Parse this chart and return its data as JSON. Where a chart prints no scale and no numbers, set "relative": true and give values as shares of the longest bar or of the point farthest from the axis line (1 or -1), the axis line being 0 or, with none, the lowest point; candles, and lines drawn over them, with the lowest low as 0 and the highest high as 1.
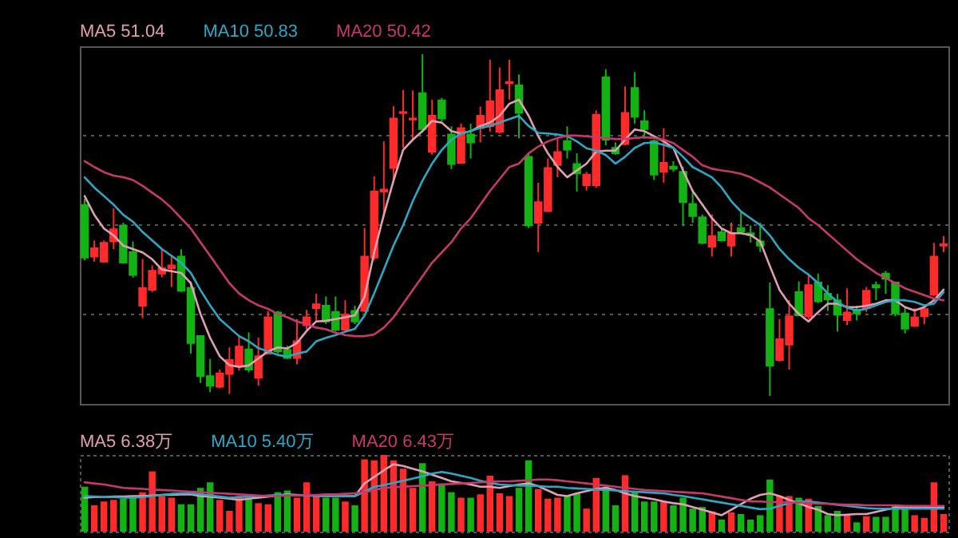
{
  "chart_data": [
    {
      "type": "candlestick",
      "relative": true,
      "grid": "y",
      "legend": "top left",
      "categories": [
        null,
        null,
        null,
        null,
        null,
        null,
        null,
        null,
        null,
        null,
        null,
        null,
        null,
        null,
        null,
        null,
        null,
        null,
        null,
        null,
        null,
        null,
        null,
        null,
        null,
        null,
        null,
        null,
        null,
        null,
        null,
        null,
        null,
        null,
        null,
        null,
        null,
        null,
        null,
        null,
        null,
        null,
        null,
        null,
        null,
        null,
        null,
        null,
        null,
        null,
        null,
        null,
        null,
        null,
        null,
        null,
        null,
        null,
        null,
        null,
        null,
        null,
        null,
        null,
        null,
        null,
        null,
        null,
        null,
        null,
        null,
        null,
        null,
        null,
        null,
        null,
        null,
        null,
        null,
        null,
        null,
        null,
        null,
        null,
        null,
        null,
        null,
        null,
        null,
        null
      ],
      "ohlc": [
        [
          0.559,
          0.577,
          0.397,
          0.405
        ],
        [
          0.408,
          0.455,
          0.393,
          0.432
        ],
        [
          0.393,
          0.455,
          0.39,
          0.448
        ],
        [
          0.452,
          0.549,
          0.429,
          0.488
        ],
        [
          0.499,
          0.507,
          0.387,
          0.39
        ],
        [
          0.421,
          0.452,
          0.346,
          0.354
        ],
        [
          0.264,
          0.401,
          0.228,
          0.316
        ],
        [
          0.311,
          0.382,
          0.304,
          0.366
        ],
        [
          0.358,
          0.432,
          0.347,
          0.374
        ],
        [
          0.374,
          0.413,
          0.319,
          0.382
        ],
        [
          0.408,
          0.429,
          0.304,
          0.308
        ],
        [
          0.316,
          0.335,
          0.124,
          0.155
        ],
        [
          0.175,
          0.178,
          0.038,
          0.058
        ],
        [
          0.058,
          0.108,
          0.011,
          0.03
        ],
        [
          0.027,
          0.077,
          0.022,
          0.066
        ],
        [
          0.064,
          0.142,
          0.006,
          0.105
        ],
        [
          0.089,
          0.174,
          0.074,
          0.144
        ],
        [
          0.136,
          0.186,
          0.069,
          0.077
        ],
        [
          0.053,
          0.171,
          0.03,
          0.116
        ],
        [
          0.124,
          0.249,
          0.124,
          0.23
        ],
        [
          0.244,
          0.249,
          0.124,
          0.131
        ],
        [
          0.135,
          0.147,
          0.108,
          0.111
        ],
        [
          0.111,
          0.225,
          0.092,
          0.16
        ],
        [
          0.207,
          0.252,
          0.194,
          0.23
        ],
        [
          0.257,
          0.299,
          0.218,
          0.268
        ],
        [
          0.264,
          0.291,
          0.21,
          0.218
        ],
        [
          0.246,
          0.291,
          0.189,
          0.194
        ],
        [
          0.194,
          0.28,
          0.189,
          0.238
        ],
        [
          0.249,
          0.264,
          0.21,
          0.218
        ],
        [
          0.249,
          0.491,
          0.246,
          0.408
        ],
        [
          0.405,
          0.643,
          0.397,
          0.598
        ],
        [
          0.598,
          0.745,
          0.526,
          0.604
        ],
        [
          0.667,
          0.848,
          0.624,
          0.812
        ],
        [
          0.828,
          0.895,
          0.726,
          0.831
        ],
        [
          0.809,
          0.894,
          0.75,
          0.812
        ],
        [
          0.886,
          1,
          0.778,
          0.781
        ],
        [
          0.715,
          0.867,
          0.706,
          0.82
        ],
        [
          0.865,
          0.872,
          0.804,
          0.812
        ],
        [
          0.765,
          0.789,
          0.664,
          0.679
        ],
        [
          0.682,
          0.797,
          0.679,
          0.784
        ],
        [
          0.765,
          0.797,
          0.695,
          0.742
        ],
        [
          0.784,
          0.847,
          0.742,
          0.82
        ],
        [
          0.789,
          0.984,
          0.773,
          0.862
        ],
        [
          0.773,
          0.961,
          0.768,
          0.895
        ],
        [
          0.915,
          0.984,
          0.867,
          0.919
        ],
        [
          0.909,
          0.941,
          0.754,
          0.828
        ],
        [
          0.7,
          0.71,
          0.491,
          0.499
        ],
        [
          0.507,
          0.624,
          0.421,
          0.567
        ],
        [
          0.541,
          0.695,
          0.538,
          0.667
        ],
        [
          0.676,
          0.757,
          0.64,
          0.714
        ],
        [
          0.746,
          0.789,
          0.695,
          0.721
        ],
        [
          0.679,
          0.71,
          0.598,
          0.651
        ],
        [
          0.617,
          0.656,
          0.601,
          0.648
        ],
        [
          0.617,
          0.836,
          0.609,
          0.823
        ],
        [
          0.933,
          0.956,
          0.734,
          0.75
        ],
        [
          0.726,
          0.742,
          0.706,
          0.71
        ],
        [
          0.737,
          0.906,
          0.734,
          0.828
        ],
        [
          0.901,
          0.948,
          0.797,
          0.817
        ],
        [
          0.804,
          0.836,
          0.754,
          0.781
        ],
        [
          0.746,
          0.75,
          0.632,
          0.648
        ],
        [
          0.656,
          0.784,
          0.624,
          0.682
        ],
        [
          0.671,
          0.687,
          0.656,
          0.665
        ],
        [
          0.656,
          0.671,
          0.499,
          0.567
        ],
        [
          0.562,
          0.604,
          0.507,
          0.526
        ],
        [
          0.523,
          0.531,
          0.444,
          0.448
        ],
        [
          0.437,
          0.531,
          0.408,
          0.468
        ],
        [
          0.479,
          0.491,
          0.452,
          0.455
        ],
        [
          0.44,
          0.507,
          0.408,
          0.476
        ],
        [
          0.491,
          0.538,
          0.476,
          0.48
        ],
        [
          0.476,
          0.499,
          0.449,
          0.471
        ],
        [
          0.452,
          0.507,
          0.421,
          0.44
        ],
        [
          0.254,
          0.332,
          0,
          0.089
        ],
        [
          0.105,
          0.225,
          0.1,
          0.166
        ],
        [
          0.15,
          0.28,
          0.077,
          0.233
        ],
        [
          0.304,
          0.335,
          0.233,
          0.236
        ],
        [
          0.233,
          0.358,
          0.225,
          0.324
        ],
        [
          0.332,
          0.358,
          0.272,
          0.277
        ],
        [
          0.299,
          0.324,
          0.249,
          0.283
        ],
        [
          0.28,
          0.299,
          0.189,
          0.238
        ],
        [
          0.222,
          0.315,
          0.207,
          0.244
        ],
        [
          0.252,
          0.264,
          0.221,
          0.241
        ],
        [
          0.257,
          0.319,
          0.246,
          0.308
        ],
        [
          0.324,
          0.335,
          0.28,
          0.318
        ],
        [
          0.358,
          0.366,
          0.299,
          0.343
        ],
        [
          0.332,
          0.335,
          0.233,
          0.241
        ],
        [
          0.241,
          0.257,
          0.183,
          0.197
        ],
        [
          0.205,
          0.257,
          0.202,
          0.23
        ],
        [
          0.233,
          0.264,
          0.21,
          0.254
        ],
        [
          0.296,
          0.448,
          0.293,
          0.408
        ],
        [
          0.44,
          0.468,
          0.421,
          0.444
        ]
      ],
      "colors": [
        "#13b313",
        "#ff2a2a",
        "#ff2a2a",
        "#ff2a2a",
        "#13b313",
        "#13b313",
        "#ff2a2a",
        "#ff2a2a",
        "#ff2a2a",
        "#ff2a2a",
        "#13b313",
        "#13b313",
        "#13b313",
        "#13b313",
        "#ff2a2a",
        "#ff2a2a",
        "#ff2a2a",
        "#13b313",
        "#ff2a2a",
        "#ff2a2a",
        "#13b313",
        "#13b313",
        "#ff2a2a",
        "#ff2a2a",
        "#ff2a2a",
        "#13b313",
        "#13b313",
        "#ff2a2a",
        "#13b313",
        "#ff2a2a",
        "#ff2a2a",
        "#ff2a2a",
        "#ff2a2a",
        "#ff2a2a",
        "#ff2a2a",
        "#13b313",
        "#ff2a2a",
        "#13b313",
        "#13b313",
        "#ff2a2a",
        "#13b313",
        "#ff2a2a",
        "#ff2a2a",
        "#ff2a2a",
        "#ff2a2a",
        "#13b313",
        "#13b313",
        "#ff2a2a",
        "#ff2a2a",
        "#ff2a2a",
        "#13b313",
        "#13b313",
        "#ff2a2a",
        "#ff2a2a",
        "#13b313",
        "#13b313",
        "#ff2a2a",
        "#13b313",
        "#13b313",
        "#13b313",
        "#ff2a2a",
        "#13b313",
        "#13b313",
        "#13b313",
        "#13b313",
        "#ff2a2a",
        "#13b313",
        "#ff2a2a",
        "#13b313",
        "#13b313",
        "#13b313",
        "#13b313",
        "#ff2a2a",
        "#ff2a2a",
        "#13b313",
        "#ff2a2a",
        "#13b313",
        "#13b313",
        "#13b313",
        "#ff2a2a",
        "#13b313",
        "#ff2a2a",
        "#13b313",
        "#13b313",
        "#13b313",
        "#13b313",
        "#ff2a2a",
        "#ff2a2a",
        "#ff2a2a",
        "#ff2a2a"
      ],
      "series": [
        {
          "type": "line",
          "name": "MA5 51.04",
          "color": "#e0a0b4",
          "values": [
            0.585,
            0.53,
            0.49,
            0.47,
            0.44,
            0.43,
            0.42,
            0.4,
            0.37,
            0.365,
            0.36,
            0.33,
            0.24,
            0.17,
            0.116,
            0.09,
            0.085,
            0.089,
            0.11,
            0.13,
            0.142,
            0.139,
            0.155,
            0.19,
            0.218,
            0.22,
            0.225,
            0.23,
            0.236,
            0.29,
            0.42,
            0.53,
            0.63,
            0.72,
            0.75,
            0.775,
            0.805,
            0.8,
            0.775,
            0.768,
            0.775,
            0.79,
            0.8,
            0.82,
            0.855,
            0.867,
            0.82,
            0.76,
            0.71,
            0.67,
            0.64,
            0.66,
            0.68,
            0.715,
            0.718,
            0.718,
            0.75,
            0.78,
            0.775,
            0.76,
            0.745,
            0.726,
            0.66,
            0.6,
            0.56,
            0.52,
            0.49,
            0.476,
            0.476,
            0.471,
            0.452,
            0.38,
            0.31,
            0.27,
            0.24,
            0.218,
            0.245,
            0.27,
            0.27,
            0.26,
            0.26,
            0.264,
            0.27,
            0.28,
            0.28,
            0.26,
            0.25,
            0.26,
            0.28,
            0.311
          ]
        },
        {
          "type": "line",
          "name": "MA10 50.83",
          "color": "#2aa8c4",
          "values": [
            0.64,
            0.61,
            0.585,
            0.56,
            0.53,
            0.51,
            0.48,
            0.455,
            0.43,
            0.41,
            0.39,
            0.36,
            0.31,
            0.265,
            0.225,
            0.2,
            0.175,
            0.16,
            0.14,
            0.13,
            0.12,
            0.115,
            0.124,
            0.13,
            0.16,
            0.17,
            0.178,
            0.188,
            0.196,
            0.235,
            0.3,
            0.37,
            0.44,
            0.5,
            0.57,
            0.63,
            0.68,
            0.72,
            0.75,
            0.768,
            0.775,
            0.785,
            0.79,
            0.8,
            0.81,
            0.82,
            0.79,
            0.77,
            0.768,
            0.765,
            0.76,
            0.745,
            0.725,
            0.718,
            0.705,
            0.68,
            0.7,
            0.726,
            0.74,
            0.742,
            0.735,
            0.726,
            0.7,
            0.67,
            0.655,
            0.64,
            0.61,
            0.57,
            0.54,
            0.52,
            0.5,
            0.47,
            0.43,
            0.4,
            0.375,
            0.355,
            0.33,
            0.3,
            0.275,
            0.258,
            0.25,
            0.255,
            0.265,
            0.275,
            0.28,
            0.28,
            0.275,
            0.265,
            0.27,
            0.304
          ]
        },
        {
          "type": "line",
          "name": "MA20 50.42",
          "color": "#c8386e",
          "values": [
            0.687,
            0.67,
            0.655,
            0.645,
            0.64,
            0.632,
            0.615,
            0.595,
            0.575,
            0.55,
            0.52,
            0.49,
            0.45,
            0.41,
            0.37,
            0.33,
            0.3,
            0.28,
            0.265,
            0.255,
            0.24,
            0.23,
            0.218,
            0.21,
            0.2,
            0.195,
            0.185,
            0.178,
            0.175,
            0.175,
            0.18,
            0.2,
            0.23,
            0.27,
            0.31,
            0.35,
            0.39,
            0.42,
            0.45,
            0.49,
            0.52,
            0.56,
            0.6,
            0.635,
            0.67,
            0.68,
            0.71,
            0.73,
            0.745,
            0.755,
            0.762,
            0.762,
            0.76,
            0.757,
            0.755,
            0.752,
            0.752,
            0.755,
            0.757,
            0.755,
            0.75,
            0.74,
            0.72,
            0.7,
            0.675,
            0.665,
            0.66,
            0.656,
            0.65,
            0.64,
            0.625,
            0.61,
            0.59,
            0.57,
            0.55,
            0.52,
            0.5,
            0.475,
            0.45,
            0.425,
            0.4,
            0.38,
            0.36,
            0.345,
            0.33,
            0.315,
            0.305,
            0.295,
            0.285,
            0.28
          ]
        }
      ]
    },
    {
      "type": "bar",
      "relative": true,
      "legend": "top left",
      "categories": [
        null,
        null,
        null,
        null,
        null,
        null,
        null,
        null,
        null,
        null,
        null,
        null,
        null,
        null,
        null,
        null,
        null,
        null,
        null,
        null,
        null,
        null,
        null,
        null,
        null,
        null,
        null,
        null,
        null,
        null,
        null,
        null,
        null,
        null,
        null,
        null,
        null,
        null,
        null,
        null,
        null,
        null,
        null,
        null,
        null,
        null,
        null,
        null,
        null,
        null,
        null,
        null,
        null,
        null,
        null,
        null,
        null,
        null,
        null,
        null,
        null,
        null,
        null,
        null,
        null,
        null,
        null,
        null,
        null,
        null,
        null,
        null,
        null,
        null,
        null,
        null,
        null,
        null,
        null,
        null,
        null,
        null,
        null,
        null,
        null,
        null,
        null,
        null,
        null,
        null
      ],
      "values": [
        0.586,
        0.343,
        0.393,
        0.414,
        0.429,
        0.443,
        0.514,
        0.786,
        0.464,
        0.443,
        0.357,
        0.357,
        0.571,
        0.643,
        0.414,
        0.271,
        0.464,
        0.443,
        0.371,
        0.357,
        0.514,
        0.536,
        0.443,
        0.643,
        0.464,
        0.443,
        0.443,
        0.393,
        0.343,
        0.943,
        0.929,
        1,
        0.929,
        0.821,
        0.571,
        0.893,
        0.657,
        0.629,
        0.514,
        0.443,
        0.443,
        0.486,
        0.729,
        0.5,
        0.464,
        0.571,
        0.929,
        0.557,
        0.429,
        0.443,
        0.464,
        0.5,
        0.3,
        0.7,
        0.586,
        0.343,
        0.736,
        0.514,
        0.393,
        0.393,
        0.393,
        0.343,
        0.443,
        0.3,
        0.321,
        0.264,
        0.157,
        0.25,
        0.229,
        0.157,
        0.214,
        0.679,
        0.464,
        0.464,
        0.443,
        0.429,
        0.336,
        0.214,
        0.271,
        0.229,
        0.121,
        0.2,
        0.193,
        0.193,
        0.336,
        0.3,
        0.214,
        0.179,
        0.643,
        0.229
      ],
      "colors": [
        "#13b313",
        "#ff2a2a",
        "#ff2a2a",
        "#ff2a2a",
        "#13b313",
        "#13b313",
        "#ff2a2a",
        "#ff2a2a",
        "#ff2a2a",
        "#ff2a2a",
        "#13b313",
        "#13b313",
        "#13b313",
        "#13b313",
        "#ff2a2a",
        "#ff2a2a",
        "#ff2a2a",
        "#13b313",
        "#ff2a2a",
        "#ff2a2a",
        "#13b313",
        "#13b313",
        "#ff2a2a",
        "#ff2a2a",
        "#ff2a2a",
        "#13b313",
        "#13b313",
        "#ff2a2a",
        "#13b313",
        "#ff2a2a",
        "#ff2a2a",
        "#ff2a2a",
        "#ff2a2a",
        "#ff2a2a",
        "#ff2a2a",
        "#13b313",
        "#ff2a2a",
        "#13b313",
        "#13b313",
        "#ff2a2a",
        "#13b313",
        "#ff2a2a",
        "#ff2a2a",
        "#ff2a2a",
        "#ff2a2a",
        "#13b313",
        "#13b313",
        "#ff2a2a",
        "#ff2a2a",
        "#ff2a2a",
        "#13b313",
        "#13b313",
        "#ff2a2a",
        "#ff2a2a",
        "#13b313",
        "#13b313",
        "#ff2a2a",
        "#13b313",
        "#13b313",
        "#13b313",
        "#ff2a2a",
        "#13b313",
        "#13b313",
        "#13b313",
        "#13b313",
        "#ff2a2a",
        "#13b313",
        "#ff2a2a",
        "#13b313",
        "#13b313",
        "#13b313",
        "#13b313",
        "#ff2a2a",
        "#ff2a2a",
        "#13b313",
        "#ff2a2a",
        "#13b313",
        "#13b313",
        "#13b313",
        "#ff2a2a",
        "#13b313",
        "#ff2a2a",
        "#13b313",
        "#13b313",
        "#13b313",
        "#13b313",
        "#ff2a2a",
        "#ff2a2a",
        "#ff2a2a",
        "#ff2a2a"
      ],
      "series": [
        {
          "type": "line",
          "name": "MA5 6.38万",
          "color": "#e0a0b4",
          "values": [
            0.443,
            0.45,
            0.45,
            0.457,
            0.457,
            0.464,
            0.464,
            0.471,
            0.479,
            0.479,
            0.486,
            0.486,
            0.464,
            0.457,
            0.443,
            0.429,
            0.414,
            0.429,
            0.443,
            0.457,
            0.471,
            0.486,
            0.479,
            0.471,
            0.471,
            0.464,
            0.464,
            0.464,
            0.464,
            0.629,
            0.714,
            0.8,
            0.879,
            0.857,
            0.821,
            0.786,
            0.743,
            0.7,
            0.657,
            0.636,
            0.614,
            0.586,
            0.586,
            0.571,
            0.593,
            0.614,
            0.629,
            0.593,
            0.536,
            0.479,
            0.464,
            0.5,
            0.529,
            0.557,
            0.571,
            0.543,
            0.5,
            0.464,
            0.443,
            0.421,
            0.393,
            0.371,
            0.357,
            0.321,
            0.286,
            0.25,
            0.214,
            0.286,
            0.357,
            0.429,
            0.479,
            0.5,
            0.464,
            0.414,
            0.371,
            0.321,
            0.286,
            0.229,
            0.214,
            0.221,
            0.229,
            0.229,
            0.257,
            0.286,
            0.314,
            0.321,
            0.321,
            0.321,
            0.321,
            0.321
          ]
        },
        {
          "type": "line",
          "name": "MA10 5.40万",
          "color": "#2aa8c4",
          "values": [
            0.464,
            0.457,
            0.45,
            0.45,
            0.443,
            0.443,
            0.45,
            0.464,
            0.479,
            0.493,
            0.5,
            0.5,
            0.486,
            0.471,
            0.457,
            0.443,
            0.45,
            0.457,
            0.464,
            0.471,
            0.479,
            0.479,
            0.471,
            0.471,
            0.464,
            0.464,
            0.464,
            0.464,
            0.464,
            0.521,
            0.586,
            0.607,
            0.636,
            0.664,
            0.693,
            0.721,
            0.757,
            0.779,
            0.757,
            0.729,
            0.7,
            0.664,
            0.636,
            0.614,
            0.607,
            0.6,
            0.6,
            0.593,
            0.586,
            0.586,
            0.571,
            0.564,
            0.557,
            0.55,
            0.543,
            0.536,
            0.529,
            0.521,
            0.514,
            0.507,
            0.5,
            0.479,
            0.464,
            0.443,
            0.421,
            0.4,
            0.379,
            0.357,
            0.336,
            0.314,
            0.293,
            0.3,
            0.336,
            0.371,
            0.393,
            0.393,
            0.379,
            0.364,
            0.35,
            0.336,
            0.321,
            0.307,
            0.3,
            0.3,
            0.3,
            0.3,
            0.3,
            0.3,
            0.3,
            0.3
          ]
        },
        {
          "type": "line",
          "name": "MA20 6.43万",
          "color": "#c8386e",
          "values": [
            0.643,
            0.629,
            0.614,
            0.593,
            0.571,
            0.564,
            0.557,
            0.55,
            0.543,
            0.536,
            0.529,
            0.521,
            0.514,
            0.507,
            0.5,
            0.493,
            0.486,
            0.479,
            0.471,
            0.464,
            0.464,
            0.471,
            0.471,
            0.479,
            0.479,
            0.486,
            0.486,
            0.493,
            0.5,
            0.514,
            0.543,
            0.571,
            0.579,
            0.586,
            0.593,
            0.6,
            0.607,
            0.614,
            0.621,
            0.629,
            0.636,
            0.643,
            0.65,
            0.657,
            0.657,
            0.664,
            0.671,
            0.679,
            0.679,
            0.671,
            0.657,
            0.643,
            0.629,
            0.614,
            0.6,
            0.586,
            0.571,
            0.557,
            0.543,
            0.536,
            0.529,
            0.521,
            0.514,
            0.507,
            0.5,
            0.479,
            0.457,
            0.436,
            0.414,
            0.393,
            0.393,
            0.386,
            0.386,
            0.379,
            0.379,
            0.371,
            0.364,
            0.364,
            0.357,
            0.35,
            0.35,
            0.343,
            0.343,
            0.343,
            0.343,
            0.336,
            0.336,
            0.336,
            0.336,
            0.336
          ]
        }
      ]
    }
  ]
}
